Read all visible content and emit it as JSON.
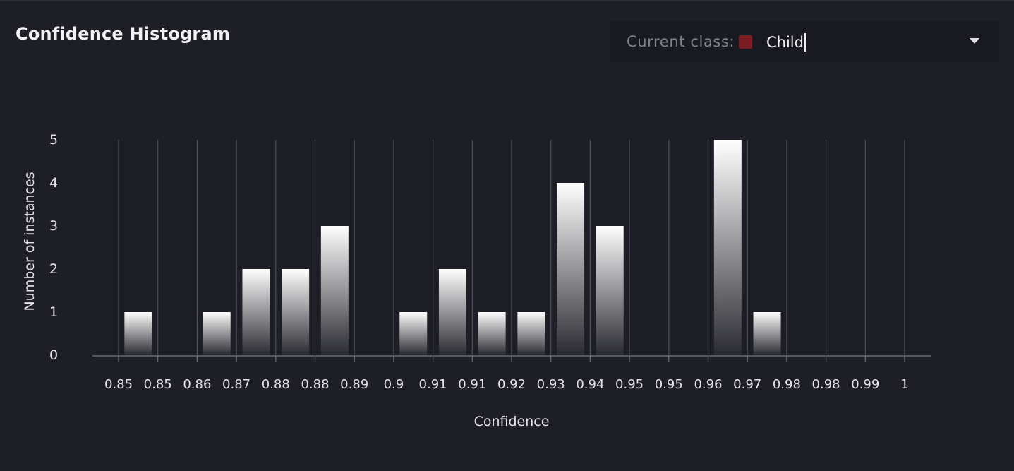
{
  "panel": {
    "title": "Confidence Histogram"
  },
  "class_selector": {
    "label": "Current class:",
    "value": "Child",
    "swatch_color": "#7a1c22"
  },
  "chart_data": {
    "type": "bar",
    "xlabel": "Confidence",
    "ylabel": "Number of instances",
    "y_ticks": [
      0,
      1,
      2,
      3,
      4,
      5
    ],
    "ylim": [
      0,
      5
    ],
    "x_tick_labels": [
      "0.85",
      "0.85",
      "0.86",
      "0.87",
      "0.88",
      "0.88",
      "0.89",
      "0.9",
      "0.91",
      "0.91",
      "0.92",
      "0.93",
      "0.94",
      "0.95",
      "0.95",
      "0.96",
      "0.97",
      "0.98",
      "0.98",
      "0.99",
      "1"
    ],
    "bars": [
      {
        "bin": 1,
        "value": 1
      },
      {
        "bin": 3,
        "value": 1
      },
      {
        "bin": 4,
        "value": 2
      },
      {
        "bin": 5,
        "value": 2
      },
      {
        "bin": 6,
        "value": 3
      },
      {
        "bin": 8,
        "value": 1
      },
      {
        "bin": 9,
        "value": 2
      },
      {
        "bin": 10,
        "value": 1
      },
      {
        "bin": 11,
        "value": 1
      },
      {
        "bin": 12,
        "value": 4
      },
      {
        "bin": 13,
        "value": 3
      },
      {
        "bin": 16,
        "value": 5
      },
      {
        "bin": 17,
        "value": 1
      }
    ],
    "grid": true,
    "bar_color_top": "#ffffff",
    "bar_color_bottom": "#2a2b31"
  }
}
